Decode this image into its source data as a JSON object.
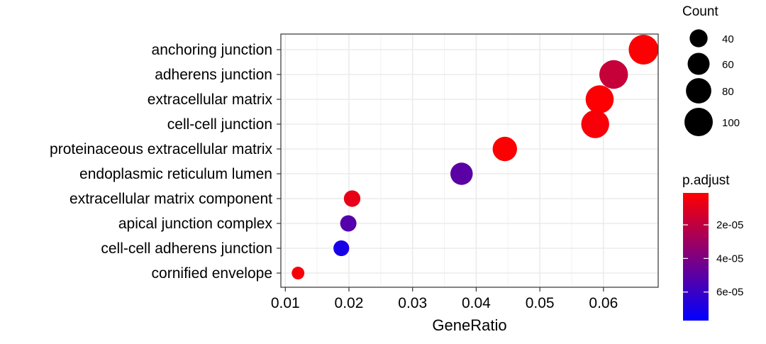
{
  "chart_data": {
    "type": "scatter",
    "title": "",
    "xlabel": "GeneRatio",
    "ylabel": "",
    "xlim": [
      0.0093,
      0.0686
    ],
    "xticks": [
      0.01,
      0.02,
      0.03,
      0.04,
      0.05,
      0.06
    ],
    "xtick_labels": [
      "0.01",
      "0.02",
      "0.03",
      "0.04",
      "0.05",
      "0.06"
    ],
    "grid": true,
    "categories": [
      "anchoring junction",
      "adherens junction",
      "extracellular matrix",
      "cell-cell junction",
      "proteinaceous extracellular matrix",
      "endoplasmic reticulum lumen",
      "extracellular matrix component",
      "apical junction complex",
      "cell-cell adherens junction",
      "cornified envelope"
    ],
    "points": [
      {
        "category": "anchoring junction",
        "x": 0.0663,
        "count": 110,
        "p_adjust": 2e-06
      },
      {
        "category": "adherens junction",
        "x": 0.0616,
        "count": 102,
        "p_adjust": 1.8e-05
      },
      {
        "category": "extracellular matrix",
        "x": 0.0594,
        "count": 98,
        "p_adjust": 2e-06
      },
      {
        "category": "cell-cell junction",
        "x": 0.0587,
        "count": 97,
        "p_adjust": 3e-06
      },
      {
        "category": "proteinaceous extracellular matrix",
        "x": 0.0445,
        "count": 74,
        "p_adjust": 2e-06
      },
      {
        "category": "endoplasmic reticulum lumen",
        "x": 0.0377,
        "count": 62,
        "p_adjust": 5e-05
      },
      {
        "category": "extracellular matrix component",
        "x": 0.0205,
        "count": 34,
        "p_adjust": 8e-06
      },
      {
        "category": "apical junction complex",
        "x": 0.0199,
        "count": 33,
        "p_adjust": 5.2e-05
      },
      {
        "category": "cell-cell adherens junction",
        "x": 0.0188,
        "count": 31,
        "p_adjust": 7e-05
      },
      {
        "category": "cornified envelope",
        "x": 0.012,
        "count": 20,
        "p_adjust": 3e-06
      }
    ],
    "size_legend": {
      "title": "Count",
      "values": [
        40,
        60,
        80,
        100
      ],
      "labels": [
        "40",
        "60",
        "80",
        "100"
      ]
    },
    "color_legend": {
      "title": "p.adjust",
      "range": [
        1e-06,
        7.7e-05
      ],
      "ticks": [
        2e-05,
        4e-05,
        6e-05
      ],
      "tick_labels": [
        "2e-05",
        "4e-05",
        "6e-05"
      ],
      "low_color": "#FF0000",
      "high_color": "#0000FF"
    },
    "legend_placement": "right"
  }
}
